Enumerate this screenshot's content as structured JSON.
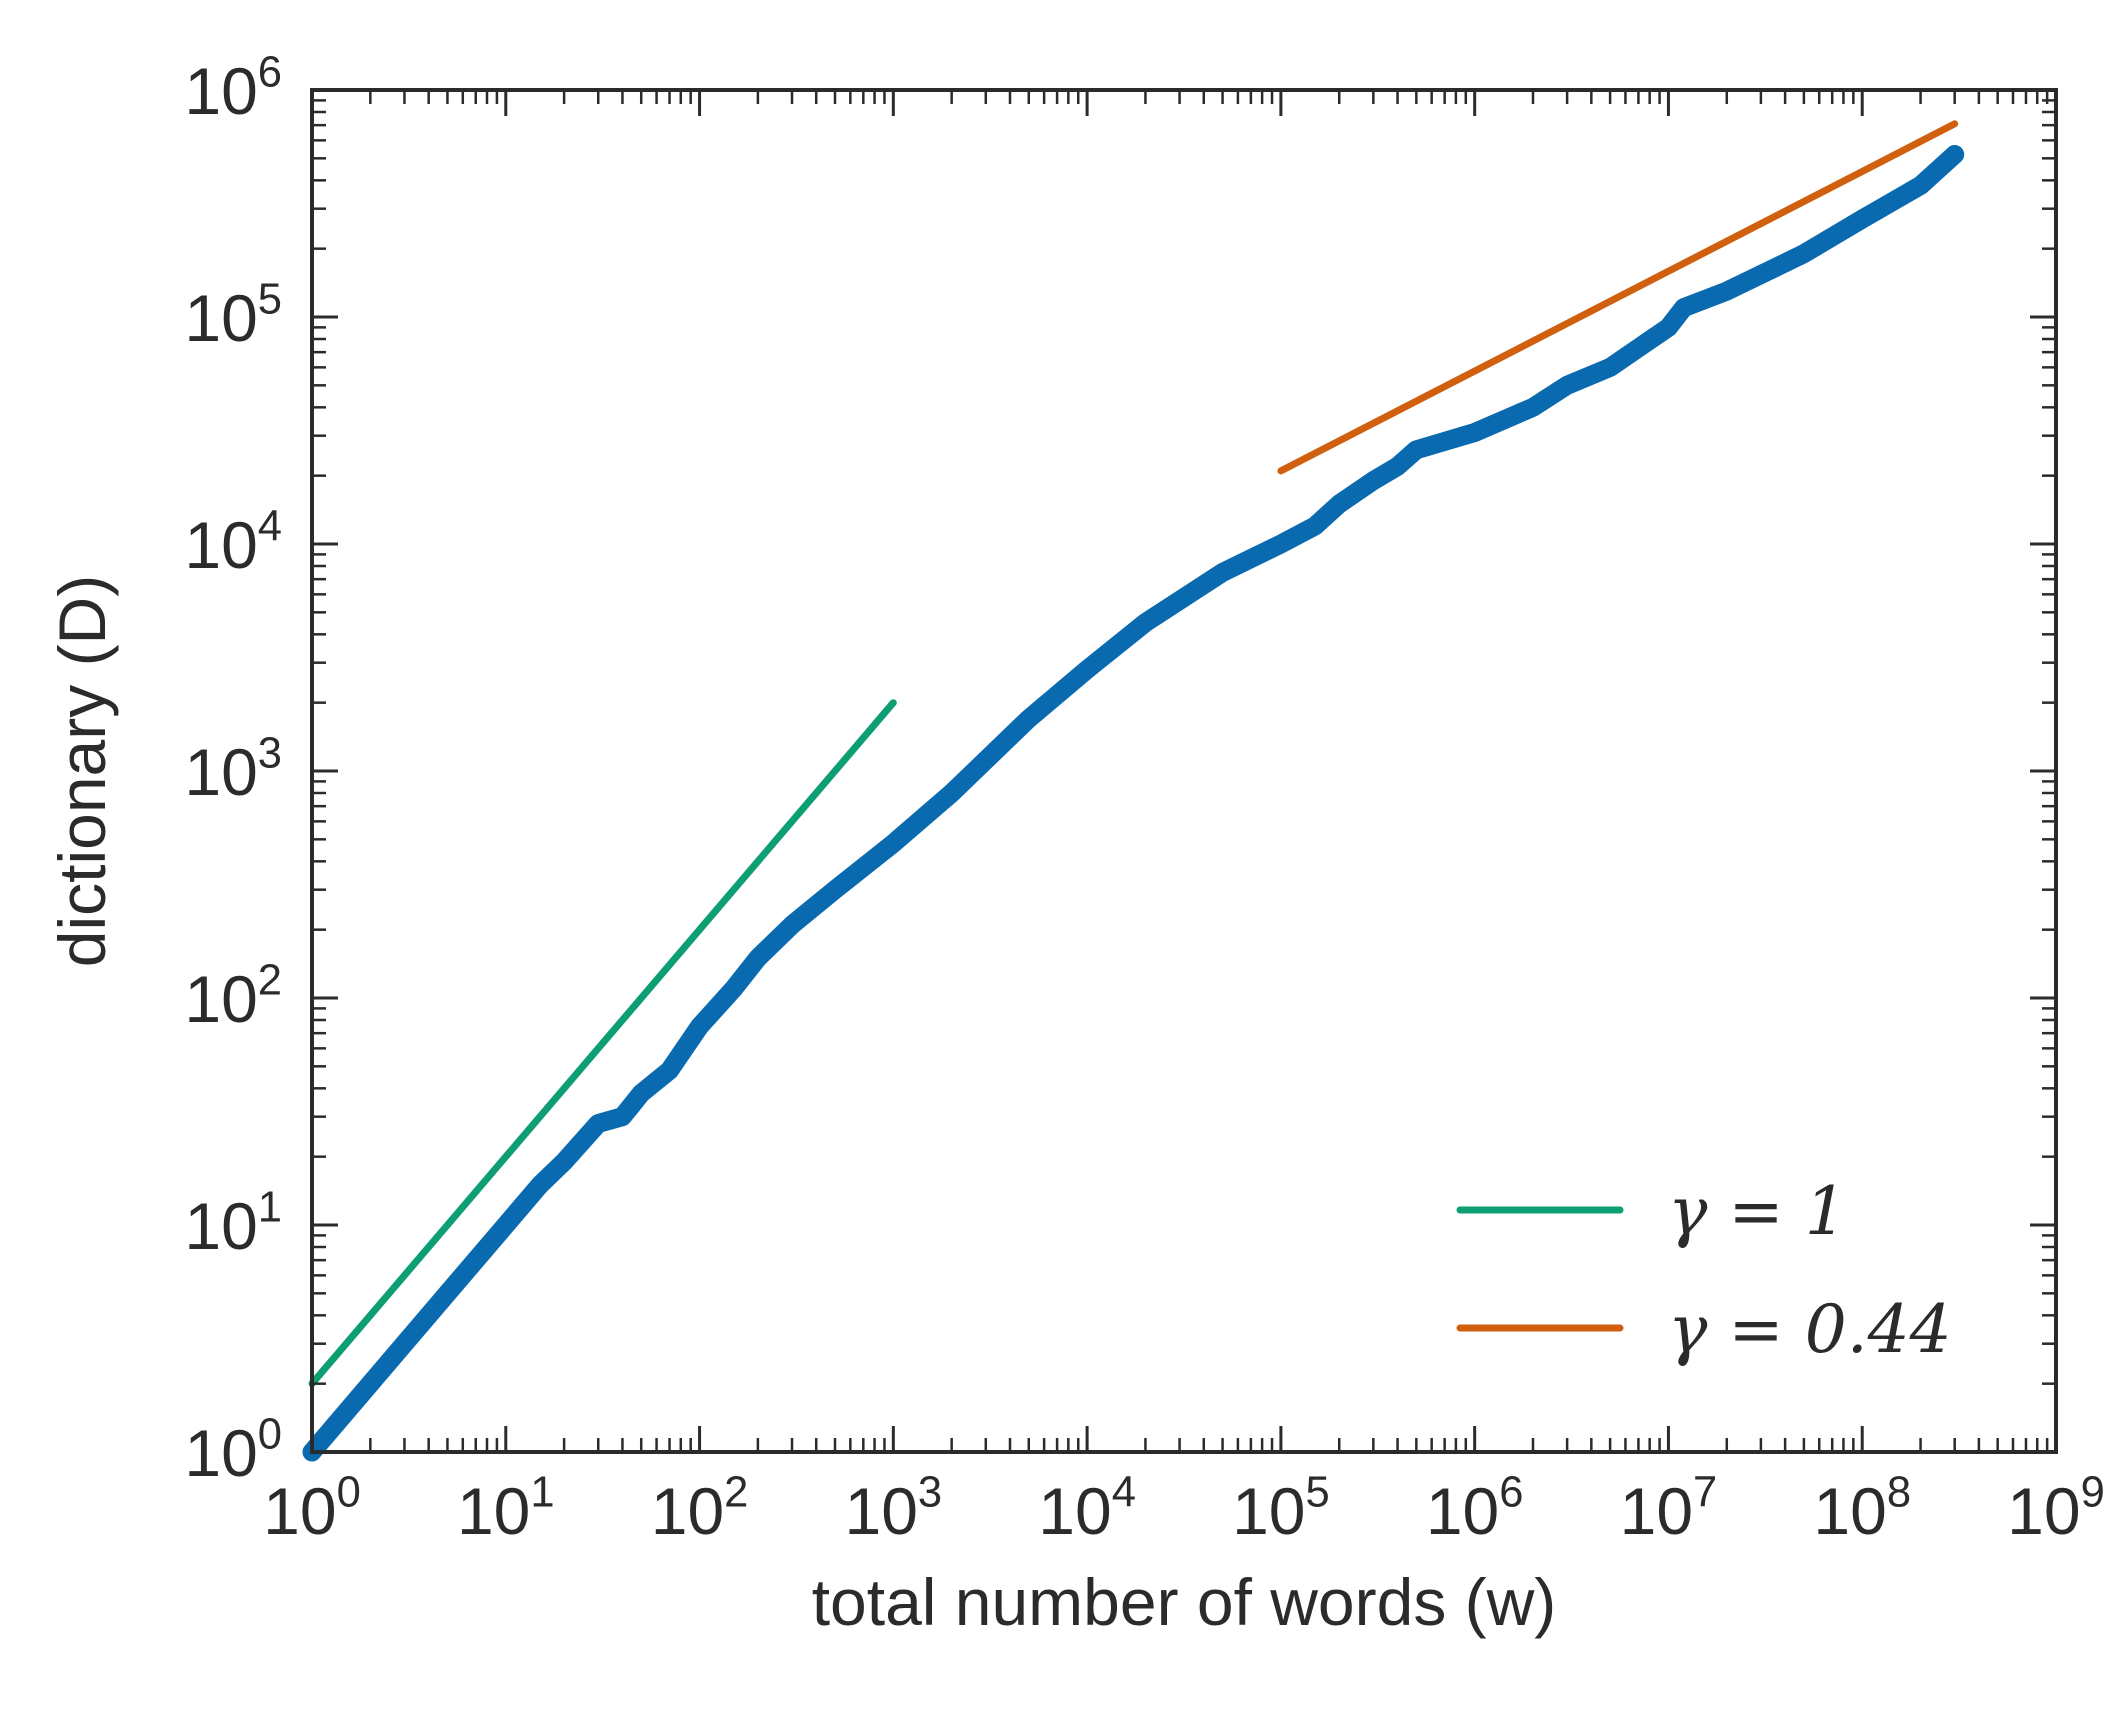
{
  "chart_data": {
    "type": "line",
    "title": "",
    "xlabel": "total number of words (w)",
    "ylabel": "dictionary (D)",
    "xscale": "log",
    "yscale": "log",
    "xlim": [
      1,
      1000000000
    ],
    "ylim": [
      1,
      1000000
    ],
    "grid": false,
    "legend_position": "bottom-right",
    "x_ticks": [
      {
        "base": "10",
        "exp": "0",
        "value": 1
      },
      {
        "base": "10",
        "exp": "1",
        "value": 10
      },
      {
        "base": "10",
        "exp": "2",
        "value": 100
      },
      {
        "base": "10",
        "exp": "3",
        "value": 1000
      },
      {
        "base": "10",
        "exp": "4",
        "value": 10000
      },
      {
        "base": "10",
        "exp": "5",
        "value": 100000
      },
      {
        "base": "10",
        "exp": "6",
        "value": 1000000
      },
      {
        "base": "10",
        "exp": "7",
        "value": 10000000
      },
      {
        "base": "10",
        "exp": "8",
        "value": 100000000
      },
      {
        "base": "10",
        "exp": "9",
        "value": 1000000000
      }
    ],
    "y_ticks": [
      {
        "base": "10",
        "exp": "0",
        "value": 1
      },
      {
        "base": "10",
        "exp": "1",
        "value": 10
      },
      {
        "base": "10",
        "exp": "2",
        "value": 100
      },
      {
        "base": "10",
        "exp": "3",
        "value": 1000
      },
      {
        "base": "10",
        "exp": "4",
        "value": 10000
      },
      {
        "base": "10",
        "exp": "5",
        "value": 100000
      },
      {
        "base": "10",
        "exp": "6",
        "value": 1000000
      }
    ],
    "series": [
      {
        "key": "data",
        "color": "#0a6ab0",
        "x": [
          1,
          2,
          5,
          10,
          15,
          20,
          30,
          40,
          50,
          70,
          100,
          150,
          200,
          300,
          500,
          1000,
          2000,
          5000,
          10000,
          20000,
          50000,
          100000,
          150000,
          200000,
          300000,
          400000,
          500000,
          1000000,
          2000000,
          3000000,
          5000000,
          10000000,
          12000000,
          20000000,
          50000000,
          100000000,
          200000000,
          300000000
        ],
        "y": [
          1,
          2,
          5,
          10,
          15,
          19,
          28,
          30,
          38,
          48,
          75,
          110,
          150,
          210,
          300,
          480,
          800,
          1700,
          2800,
          4500,
          7500,
          10000,
          12000,
          15000,
          19000,
          22000,
          26000,
          31000,
          40000,
          50000,
          60000,
          90000,
          110000,
          130000,
          190000,
          270000,
          380000,
          520000
        ]
      },
      {
        "key": "gamma1",
        "name": "γ = 1",
        "color": "#0e9e73",
        "x": [
          1,
          1000
        ],
        "y": [
          2,
          2000
        ]
      },
      {
        "key": "gamma044",
        "name": "γ = 0.44",
        "color": "#d05f0e",
        "x": [
          100000,
          300000000
        ],
        "y": [
          21000,
          710000
        ]
      }
    ]
  }
}
